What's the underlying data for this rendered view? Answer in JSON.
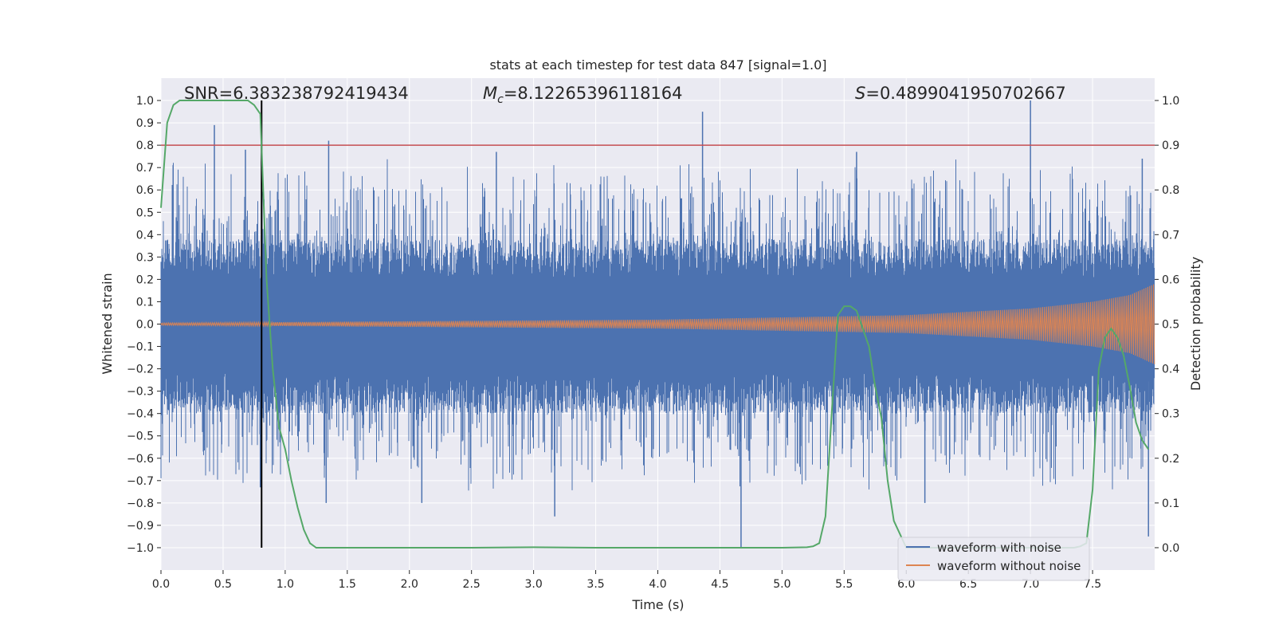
{
  "chart_data": {
    "type": "line",
    "title": "stats at each timestep for test data 847 [signal=1.0]",
    "xlabel": "Time (s)",
    "ylabel_left": "Whitened strain",
    "ylabel_right": "Detection probability",
    "xlim": [
      0.0,
      8.0
    ],
    "ylim_left": [
      -1.1,
      1.1
    ],
    "ylim_right": [
      -0.05,
      1.05
    ],
    "xticks": [
      "0.0",
      "0.5",
      "1.0",
      "1.5",
      "2.0",
      "2.5",
      "3.0",
      "3.5",
      "4.0",
      "4.5",
      "5.0",
      "5.5",
      "6.0",
      "6.5",
      "7.0",
      "7.5"
    ],
    "yticks_left": [
      "1.0",
      "0.9",
      "0.8",
      "0.7",
      "0.6",
      "0.5",
      "0.4",
      "0.3",
      "0.2",
      "0.1",
      "0.0",
      "−0.1",
      "−0.2",
      "−0.3",
      "−0.4",
      "−0.5",
      "−0.6",
      "−0.7",
      "−0.8",
      "−0.9",
      "−1.0"
    ],
    "yticks_right": [
      "1.0",
      "0.9",
      "0.8",
      "0.7",
      "0.6",
      "0.5",
      "0.4",
      "0.3",
      "0.2",
      "0.1",
      "0.0"
    ],
    "annotations": {
      "snr": "SNR=6.383238792419434",
      "mc_symbol": "M",
      "mc_sub": "c",
      "mc_value": "=8.12265396118164",
      "s_symbol": "S",
      "s_value": "=0.4899041950702667"
    },
    "threshold": {
      "value": 0.9,
      "axis": "right",
      "color": "#c44e52"
    },
    "marker_line": {
      "x": 0.81,
      "ymin": -1.0,
      "ymax": 1.0,
      "color": "#000000"
    },
    "series": [
      {
        "name": "waveform with noise",
        "axis": "left",
        "color": "#4c72b0",
        "kind": "noise",
        "envelope": {
          "base_max": 0.38,
          "base_min": -0.4,
          "typical_abs_peak": 0.75
        },
        "peaks": [
          {
            "x": 0.43,
            "y": 0.89
          },
          {
            "x": 0.68,
            "y": 0.78
          },
          {
            "x": 1.35,
            "y": 0.82
          },
          {
            "x": 2.7,
            "y": 0.77
          },
          {
            "x": 4.36,
            "y": 0.95
          },
          {
            "x": 5.6,
            "y": 0.77
          },
          {
            "x": 7.0,
            "y": 1.0
          },
          {
            "x": 7.9,
            "y": 0.74
          },
          {
            "x": 0.8,
            "y": -0.73
          },
          {
            "x": 1.33,
            "y": -0.8
          },
          {
            "x": 2.1,
            "y": -0.8
          },
          {
            "x": 3.17,
            "y": -0.86
          },
          {
            "x": 4.67,
            "y": -1.0
          },
          {
            "x": 6.15,
            "y": -0.8
          },
          {
            "x": 7.95,
            "y": -0.95
          }
        ]
      },
      {
        "name": "waveform without noise",
        "axis": "left",
        "color": "#dd8452",
        "kind": "chirp",
        "amplitude_points": [
          [
            0.0,
            0.005
          ],
          [
            4.0,
            0.02
          ],
          [
            5.0,
            0.03
          ],
          [
            6.0,
            0.04
          ],
          [
            7.0,
            0.07
          ],
          [
            7.5,
            0.1
          ],
          [
            7.8,
            0.13
          ],
          [
            8.0,
            0.18
          ]
        ]
      },
      {
        "name": "Detection probability",
        "axis": "right",
        "color": "#55a868",
        "legend": false,
        "x": [
          0.0,
          0.05,
          0.1,
          0.15,
          0.2,
          0.3,
          0.4,
          0.5,
          0.6,
          0.7,
          0.75,
          0.8,
          0.85,
          0.9,
          0.95,
          1.0,
          1.05,
          1.1,
          1.15,
          1.2,
          1.25,
          1.3,
          1.5,
          2.0,
          2.5,
          3.0,
          3.5,
          4.0,
          4.5,
          5.0,
          5.2,
          5.25,
          5.3,
          5.35,
          5.4,
          5.45,
          5.5,
          5.55,
          5.6,
          5.7,
          5.75,
          5.8,
          5.85,
          5.9,
          6.0,
          7.0,
          7.3,
          7.35,
          7.4,
          7.45,
          7.5,
          7.55,
          7.6,
          7.65,
          7.7,
          7.75,
          7.8,
          7.85,
          7.9,
          7.95
        ],
        "y": [
          0.76,
          0.95,
          0.99,
          1.0,
          1.0,
          1.0,
          1.0,
          1.0,
          1.0,
          1.0,
          0.99,
          0.97,
          0.6,
          0.4,
          0.27,
          0.22,
          0.15,
          0.09,
          0.04,
          0.01,
          0.0,
          0.0,
          0.0,
          0.0,
          0.0,
          0.001,
          0.0,
          0.0,
          0.0,
          0.0,
          0.001,
          0.003,
          0.01,
          0.07,
          0.3,
          0.52,
          0.54,
          0.54,
          0.53,
          0.45,
          0.36,
          0.29,
          0.15,
          0.06,
          0.0,
          0.0,
          0.0,
          0.0,
          0.003,
          0.01,
          0.13,
          0.4,
          0.47,
          0.49,
          0.47,
          0.43,
          0.36,
          0.28,
          0.24,
          0.22
        ]
      }
    ],
    "legend": {
      "placement": "lower-right",
      "entries": [
        {
          "label": "waveform with noise",
          "color": "#4c72b0"
        },
        {
          "label": "waveform without noise",
          "color": "#dd8452"
        }
      ]
    }
  },
  "style": {
    "plot_background": "#eaeaf2",
    "grid_color": "#ffffff"
  }
}
